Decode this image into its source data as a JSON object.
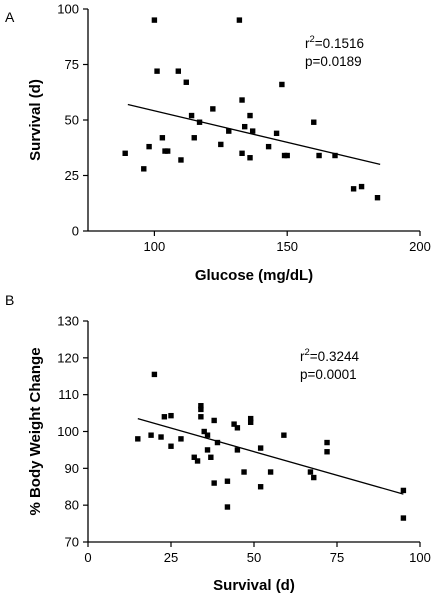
{
  "chart_data": [
    {
      "type": "scatter",
      "panel_label": "A",
      "title": "",
      "xlabel": "Glucose (mg/dL)",
      "ylabel": "Survival (d)",
      "xlim": [
        75,
        200
      ],
      "ylim": [
        0,
        100
      ],
      "xticks": [
        100,
        150,
        200
      ],
      "yticks": [
        0,
        25,
        50,
        75,
        100
      ],
      "grid": false,
      "annotation": {
        "r2_label": "r",
        "r2_sup": "2",
        "r2_value": "=0.1516",
        "p": "p=0.0189"
      },
      "fit_line": {
        "x": [
          90,
          185
        ],
        "y": [
          57,
          30
        ]
      },
      "points": [
        {
          "x": 89,
          "y": 35
        },
        {
          "x": 96,
          "y": 28
        },
        {
          "x": 98,
          "y": 38
        },
        {
          "x": 100,
          "y": 95
        },
        {
          "x": 101,
          "y": 72
        },
        {
          "x": 103,
          "y": 42
        },
        {
          "x": 104,
          "y": 36
        },
        {
          "x": 105,
          "y": 36
        },
        {
          "x": 109,
          "y": 72
        },
        {
          "x": 110,
          "y": 32
        },
        {
          "x": 112,
          "y": 67
        },
        {
          "x": 114,
          "y": 52
        },
        {
          "x": 115,
          "y": 42
        },
        {
          "x": 117,
          "y": 49
        },
        {
          "x": 122,
          "y": 55
        },
        {
          "x": 125,
          "y": 39
        },
        {
          "x": 128,
          "y": 45
        },
        {
          "x": 132,
          "y": 95
        },
        {
          "x": 133,
          "y": 59
        },
        {
          "x": 133,
          "y": 35
        },
        {
          "x": 134,
          "y": 47
        },
        {
          "x": 136,
          "y": 52
        },
        {
          "x": 136,
          "y": 33
        },
        {
          "x": 137,
          "y": 45
        },
        {
          "x": 143,
          "y": 38
        },
        {
          "x": 146,
          "y": 44
        },
        {
          "x": 148,
          "y": 66
        },
        {
          "x": 149,
          "y": 34
        },
        {
          "x": 150,
          "y": 34
        },
        {
          "x": 160,
          "y": 49
        },
        {
          "x": 162,
          "y": 34
        },
        {
          "x": 168,
          "y": 34
        },
        {
          "x": 175,
          "y": 19
        },
        {
          "x": 178,
          "y": 20
        },
        {
          "x": 184,
          "y": 15
        }
      ]
    },
    {
      "type": "scatter",
      "panel_label": "B",
      "title": "",
      "xlabel": "Survival (d)",
      "ylabel": "% Body Weight Change",
      "xlim": [
        0,
        100
      ],
      "ylim": [
        70,
        130
      ],
      "xticks": [
        0,
        25,
        50,
        75,
        100
      ],
      "yticks": [
        70,
        80,
        90,
        100,
        110,
        120,
        130
      ],
      "grid": false,
      "annotation": {
        "r2_label": "r",
        "r2_sup": "2",
        "r2_value": "=0.3244",
        "p": "p=0.0001"
      },
      "fit_line": {
        "x": [
          15,
          95
        ],
        "y": [
          103.5,
          83
        ]
      },
      "points": [
        {
          "x": 15,
          "y": 98
        },
        {
          "x": 19,
          "y": 99
        },
        {
          "x": 20,
          "y": 115.5
        },
        {
          "x": 22,
          "y": 98.5
        },
        {
          "x": 23,
          "y": 104
        },
        {
          "x": 25,
          "y": 104.3
        },
        {
          "x": 25,
          "y": 96
        },
        {
          "x": 28,
          "y": 98
        },
        {
          "x": 32,
          "y": 93
        },
        {
          "x": 33,
          "y": 92
        },
        {
          "x": 34,
          "y": 107
        },
        {
          "x": 34,
          "y": 106
        },
        {
          "x": 34,
          "y": 104
        },
        {
          "x": 35,
          "y": 100
        },
        {
          "x": 36,
          "y": 99
        },
        {
          "x": 36,
          "y": 95
        },
        {
          "x": 37,
          "y": 93
        },
        {
          "x": 38,
          "y": 103
        },
        {
          "x": 38,
          "y": 86
        },
        {
          "x": 39,
          "y": 97
        },
        {
          "x": 42,
          "y": 86.5
        },
        {
          "x": 42,
          "y": 79.5
        },
        {
          "x": 44,
          "y": 102
        },
        {
          "x": 45,
          "y": 101
        },
        {
          "x": 45,
          "y": 95
        },
        {
          "x": 47,
          "y": 89
        },
        {
          "x": 49,
          "y": 103.5
        },
        {
          "x": 49,
          "y": 102.5
        },
        {
          "x": 52,
          "y": 95.5
        },
        {
          "x": 52,
          "y": 85
        },
        {
          "x": 55,
          "y": 89
        },
        {
          "x": 59,
          "y": 99
        },
        {
          "x": 67,
          "y": 89
        },
        {
          "x": 68,
          "y": 87.5
        },
        {
          "x": 72,
          "y": 97
        },
        {
          "x": 72,
          "y": 94.5
        },
        {
          "x": 95,
          "y": 84
        },
        {
          "x": 95,
          "y": 76.5
        }
      ]
    }
  ]
}
